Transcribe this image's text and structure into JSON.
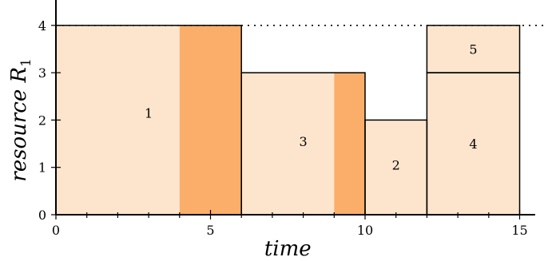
{
  "chart_data": {
    "type": "gantt-resource",
    "xlabel": "time",
    "ylabel": {
      "main": "resource R",
      "subscript": "1"
    },
    "xlim": [
      0,
      15.5
    ],
    "ylim": [
      0,
      4.4
    ],
    "capacity": 4,
    "x_ticks": [
      {
        "value": 0,
        "label": "0"
      },
      {
        "value": 5,
        "label": "5"
      },
      {
        "value": 10,
        "label": "10"
      },
      {
        "value": 15,
        "label": "15"
      }
    ],
    "x_minor_ticks": [
      1,
      2,
      3,
      4,
      6,
      7,
      8,
      9,
      11,
      12,
      13,
      14
    ],
    "y_ticks": [
      {
        "value": 0,
        "label": "0"
      },
      {
        "value": 1,
        "label": "1"
      },
      {
        "value": 2,
        "label": "2"
      },
      {
        "value": 3,
        "label": "3"
      },
      {
        "value": 4,
        "label": "4"
      }
    ],
    "colors": {
      "light": "#fde5cd",
      "dark": "#fbae6a",
      "outline": "#000000"
    },
    "fill_blocks": [
      {
        "x0": 0,
        "x1": 4,
        "y0": 0,
        "y1": 4,
        "shade": "light"
      },
      {
        "x0": 4,
        "x1": 6,
        "y0": 0,
        "y1": 4,
        "shade": "dark"
      },
      {
        "x0": 6,
        "x1": 9,
        "y0": 0,
        "y1": 3,
        "shade": "light"
      },
      {
        "x0": 9,
        "x1": 10,
        "y0": 0,
        "y1": 3,
        "shade": "dark"
      },
      {
        "x0": 10,
        "x1": 12,
        "y0": 0,
        "y1": 2,
        "shade": "light"
      },
      {
        "x0": 12,
        "x1": 15,
        "y0": 0,
        "y1": 4,
        "shade": "light"
      }
    ],
    "outlines": [
      {
        "x0": 0,
        "x1": 6,
        "y0": 0,
        "y1": 4
      },
      {
        "x0": 6,
        "x1": 10,
        "y0": 0,
        "y1": 3
      },
      {
        "x0": 10,
        "x1": 12,
        "y0": 0,
        "y1": 2
      },
      {
        "x0": 12,
        "x1": 15,
        "y0": 0,
        "y1": 3
      },
      {
        "x0": 12,
        "x1": 15,
        "y0": 3,
        "y1": 4
      }
    ],
    "jobs": [
      {
        "label": "1",
        "x": 3,
        "y": 2.15
      },
      {
        "label": "3",
        "x": 8,
        "y": 1.55
      },
      {
        "label": "2",
        "x": 11,
        "y": 1.05
      },
      {
        "label": "4",
        "x": 13.5,
        "y": 1.5
      },
      {
        "label": "5",
        "x": 13.5,
        "y": 3.5
      }
    ]
  }
}
